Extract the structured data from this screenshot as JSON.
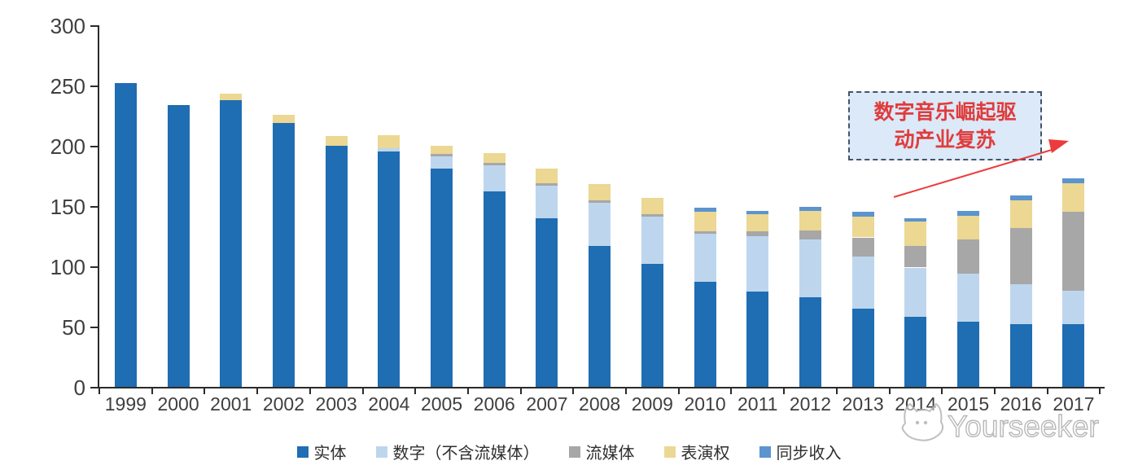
{
  "chart_data": {
    "type": "bar",
    "stacked": true,
    "title": "",
    "xlabel": "",
    "ylabel": "",
    "categories": [
      "1999",
      "2000",
      "2001",
      "2002",
      "2003",
      "2004",
      "2005",
      "2006",
      "2007",
      "2008",
      "2009",
      "2010",
      "2011",
      "2012",
      "2013",
      "2014",
      "2015",
      "2016",
      "2017"
    ],
    "series": [
      {
        "name": "实体",
        "color": "#1F6DB2",
        "values": [
          252,
          234,
          238,
          219,
          200,
          195,
          181,
          162,
          140,
          117,
          102,
          87,
          79,
          74,
          65,
          58,
          54,
          52,
          52
        ]
      },
      {
        "name": "数字（不含流媒体）",
        "color": "#BDD6EE",
        "values": [
          0,
          0,
          0,
          0,
          0,
          3,
          10,
          22,
          27,
          36,
          39,
          40,
          46,
          48,
          43,
          41,
          40,
          33,
          28
        ]
      },
      {
        "name": "流媒体",
        "color": "#A7A7A7",
        "values": [
          0,
          0,
          0,
          0,
          0,
          0,
          2,
          2,
          2,
          2,
          2,
          2,
          4,
          8,
          16,
          18,
          28,
          47,
          65
        ]
      },
      {
        "name": "表演权",
        "color": "#ECD793",
        "values": [
          0,
          0,
          5,
          7,
          8,
          11,
          7,
          8,
          12,
          13,
          14,
          16,
          14,
          16,
          17,
          20,
          20,
          23,
          24
        ]
      },
      {
        "name": "同步收入",
        "color": "#5B94CE",
        "values": [
          0,
          0,
          0,
          0,
          0,
          0,
          0,
          0,
          0,
          0,
          0,
          4,
          3,
          3,
          4,
          3,
          4,
          4,
          4
        ]
      }
    ],
    "ylim": [
      0,
      300
    ],
    "yticks": [
      0,
      50,
      100,
      150,
      200,
      250,
      300
    ],
    "grid": false,
    "legend_position": "bottom"
  },
  "annotation": {
    "line1": "数字音乐崛起驱",
    "line2": "动产业复苏",
    "text_color": "#E03C3C",
    "border_color": "#44546A",
    "fill_color": "#DBE9F8",
    "arrow_color": "#EC3B3D"
  },
  "watermark": {
    "text": "Yourseeker",
    "color": "#B5B5B5"
  }
}
